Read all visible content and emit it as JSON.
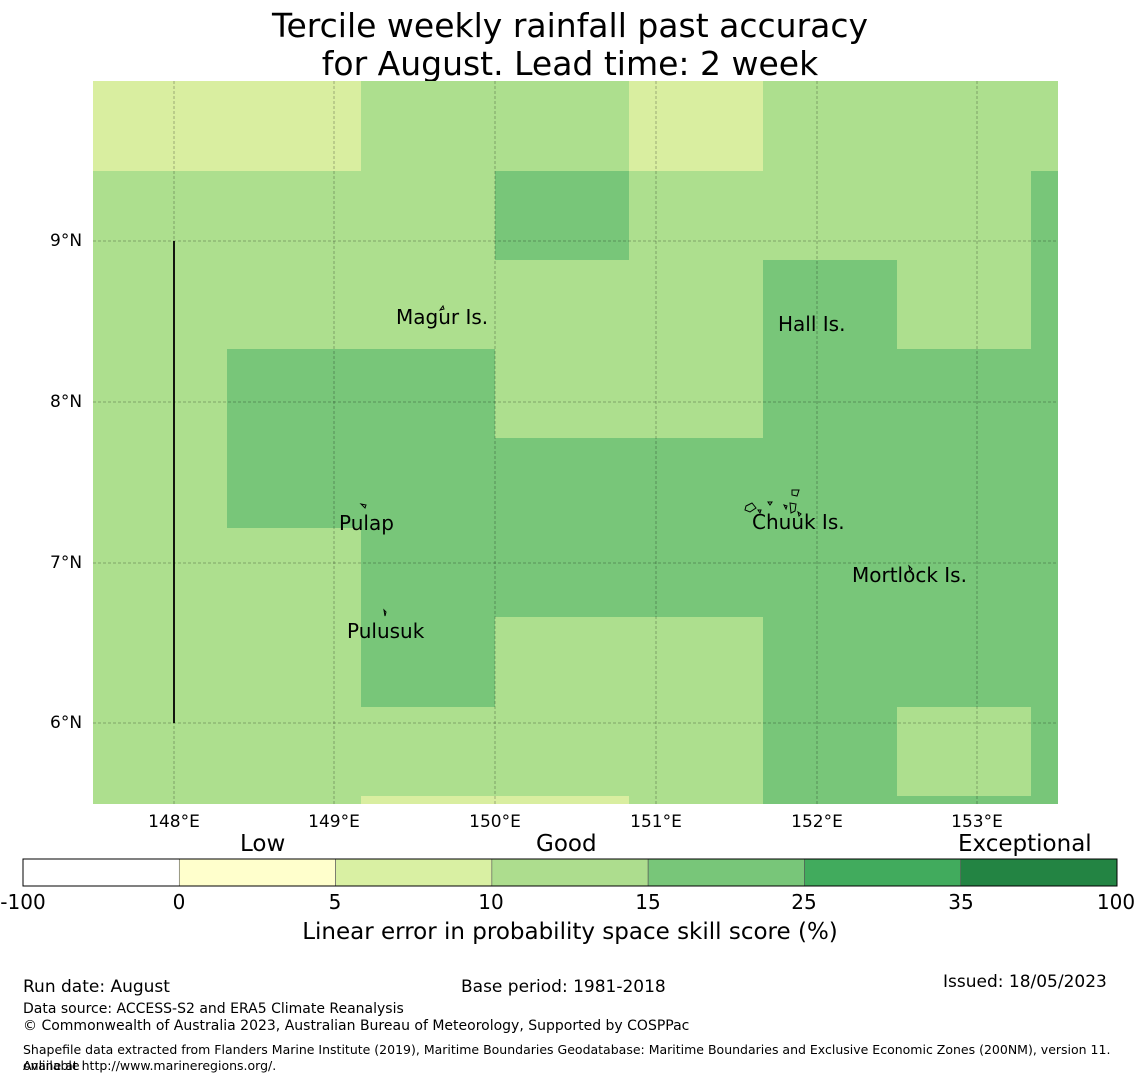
{
  "title": {
    "line1": "Tercile weekly rainfall past accuracy",
    "line2": "for August. Lead time: 2 week"
  },
  "map": {
    "lat_labels": [
      "9°N",
      "8°N",
      "7°N",
      "6°N"
    ],
    "lon_labels": [
      "148°E",
      "149°E",
      "150°E",
      "151°E",
      "152°E",
      "153°E"
    ],
    "places": [
      {
        "name": "Magur Is."
      },
      {
        "name": "Hall Is."
      },
      {
        "name": "Pulap"
      },
      {
        "name": "Chuuk Is."
      },
      {
        "name": "Mortlock Is."
      },
      {
        "name": "Pulusuk"
      }
    ],
    "colors": {
      "low_light": "#d9eea0",
      "good_light": "#addf8e",
      "good_mid": "#78c679",
      "ocean_border": "#000000"
    }
  },
  "colorbar": {
    "categories": [
      "Low",
      "Good",
      "Exceptional"
    ],
    "ticks": [
      "-100",
      "0",
      "5",
      "10",
      "15",
      "25",
      "35",
      "100"
    ],
    "colors": [
      "#ffffff",
      "#ffffcc",
      "#d9f0a3",
      "#addd8e",
      "#78c679",
      "#41ab5d",
      "#238443"
    ],
    "title": "Linear error in probability space skill score (%)"
  },
  "footer": {
    "run_date": "Run date: August",
    "base_period": "Base period: 1981-2018",
    "issued": "Issued: 18/05/2023",
    "data_source": "Data source: ACCESS-S2 and ERA5 Climate Reanalysis",
    "copyright": "© Commonwealth of Australia 2023, Australian Bureau of Meteorology, Supported by COSPPac",
    "shapefile_line1": "Shapefile data extracted from Flanders Marine Institute (2019), Maritime Boundaries Geodatabase: Maritime Boundaries and Exclusive Economic Zones (200NM), version 11. Available",
    "shapefile_line2": "online at http://www.marineregions.org/."
  }
}
